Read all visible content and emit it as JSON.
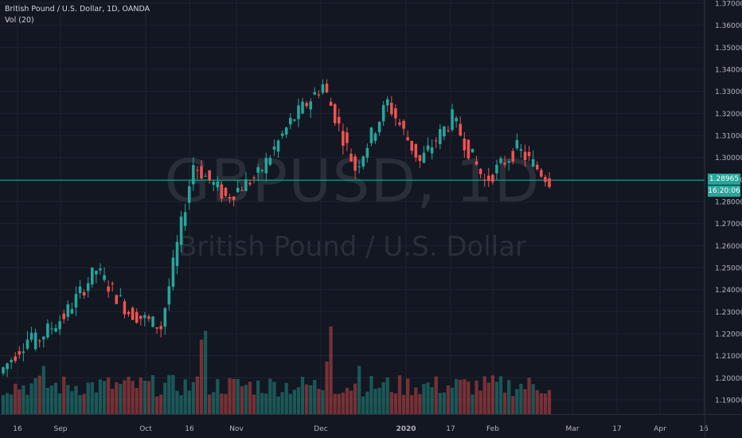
{
  "header": {
    "symbol_line": "British Pound / U.S. Dollar, 1D, OANDA",
    "indicator": "Vol (20)"
  },
  "watermark": {
    "symbol": "GBPUSD, 1D",
    "name": "British Pound / U.S. Dollar"
  },
  "price_badge": {
    "price": "1.28965",
    "countdown": "16:20:06"
  },
  "colors": {
    "background": "#131722",
    "grid": "#1f2330",
    "up": "#26a69a",
    "down": "#ef5350",
    "text": "#b2b5be",
    "last_price": "#26a69a"
  },
  "chart_data": {
    "type": "candlestick",
    "y_axis_ticks": [
      "1.19000",
      "1.20000",
      "1.21000",
      "1.22000",
      "1.23000",
      "1.24000",
      "1.25000",
      "1.26000",
      "1.27000",
      "1.28000",
      "1.29000",
      "1.30000",
      "1.31000",
      "1.32000",
      "1.33000",
      "1.34000",
      "1.35000",
      "1.36000",
      "1.37000"
    ],
    "x_axis_ticks": [
      "16",
      "Sep",
      "Oct",
      "16",
      "Nov",
      "Dec",
      "2020",
      "17",
      "Feb",
      "Mar",
      "17",
      "Apr",
      "16"
    ],
    "ylim": [
      1.184,
      1.372
    ],
    "last_price": 1.28965,
    "grid": true,
    "volume_indicator": "Vol (20)",
    "series": [
      {
        "name": "GBPUSD",
        "segments": [
          {
            "date": "Aug 2019",
            "o": 1.202,
            "c": 1.22
          },
          {
            "date": "early Sep",
            "o": 1.215,
            "c": 1.228
          },
          {
            "date": "mid Sep",
            "o": 1.228,
            "c": 1.249
          },
          {
            "date": "late Sep",
            "o": 1.249,
            "c": 1.23
          },
          {
            "date": "early Oct",
            "o": 1.23,
            "c": 1.223
          },
          {
            "date": "mid Oct",
            "o": 1.223,
            "c": 1.297
          },
          {
            "date": "late Oct",
            "o": 1.297,
            "c": 1.282
          },
          {
            "date": "Nov",
            "o": 1.282,
            "c": 1.292
          },
          {
            "date": "early Dec",
            "o": 1.292,
            "c": 1.316
          },
          {
            "date": "mid Dec",
            "o": 1.316,
            "c": 1.333
          },
          {
            "date": "late Dec",
            "o": 1.333,
            "c": 1.295
          },
          {
            "date": "early Jan 2020",
            "o": 1.295,
            "c": 1.325
          },
          {
            "date": "mid Jan",
            "o": 1.325,
            "c": 1.298
          },
          {
            "date": "late Jan",
            "o": 1.298,
            "c": 1.318
          },
          {
            "date": "early Feb",
            "o": 1.318,
            "c": 1.289
          },
          {
            "date": "mid Feb",
            "o": 1.289,
            "c": 1.304
          },
          {
            "date": "Feb 20",
            "o": 1.304,
            "c": 1.2897
          }
        ]
      }
    ],
    "volume_spikes": [
      {
        "date": "Sep 3",
        "level": 0.55
      },
      {
        "date": "Oct 10",
        "level": 0.95
      },
      {
        "date": "Oct 11",
        "level": 0.85
      },
      {
        "date": "Dec 13",
        "level": 1.0
      },
      {
        "date": "Dec 12",
        "level": 0.6
      },
      {
        "date": "Jan 2",
        "level": 0.55
      }
    ]
  }
}
